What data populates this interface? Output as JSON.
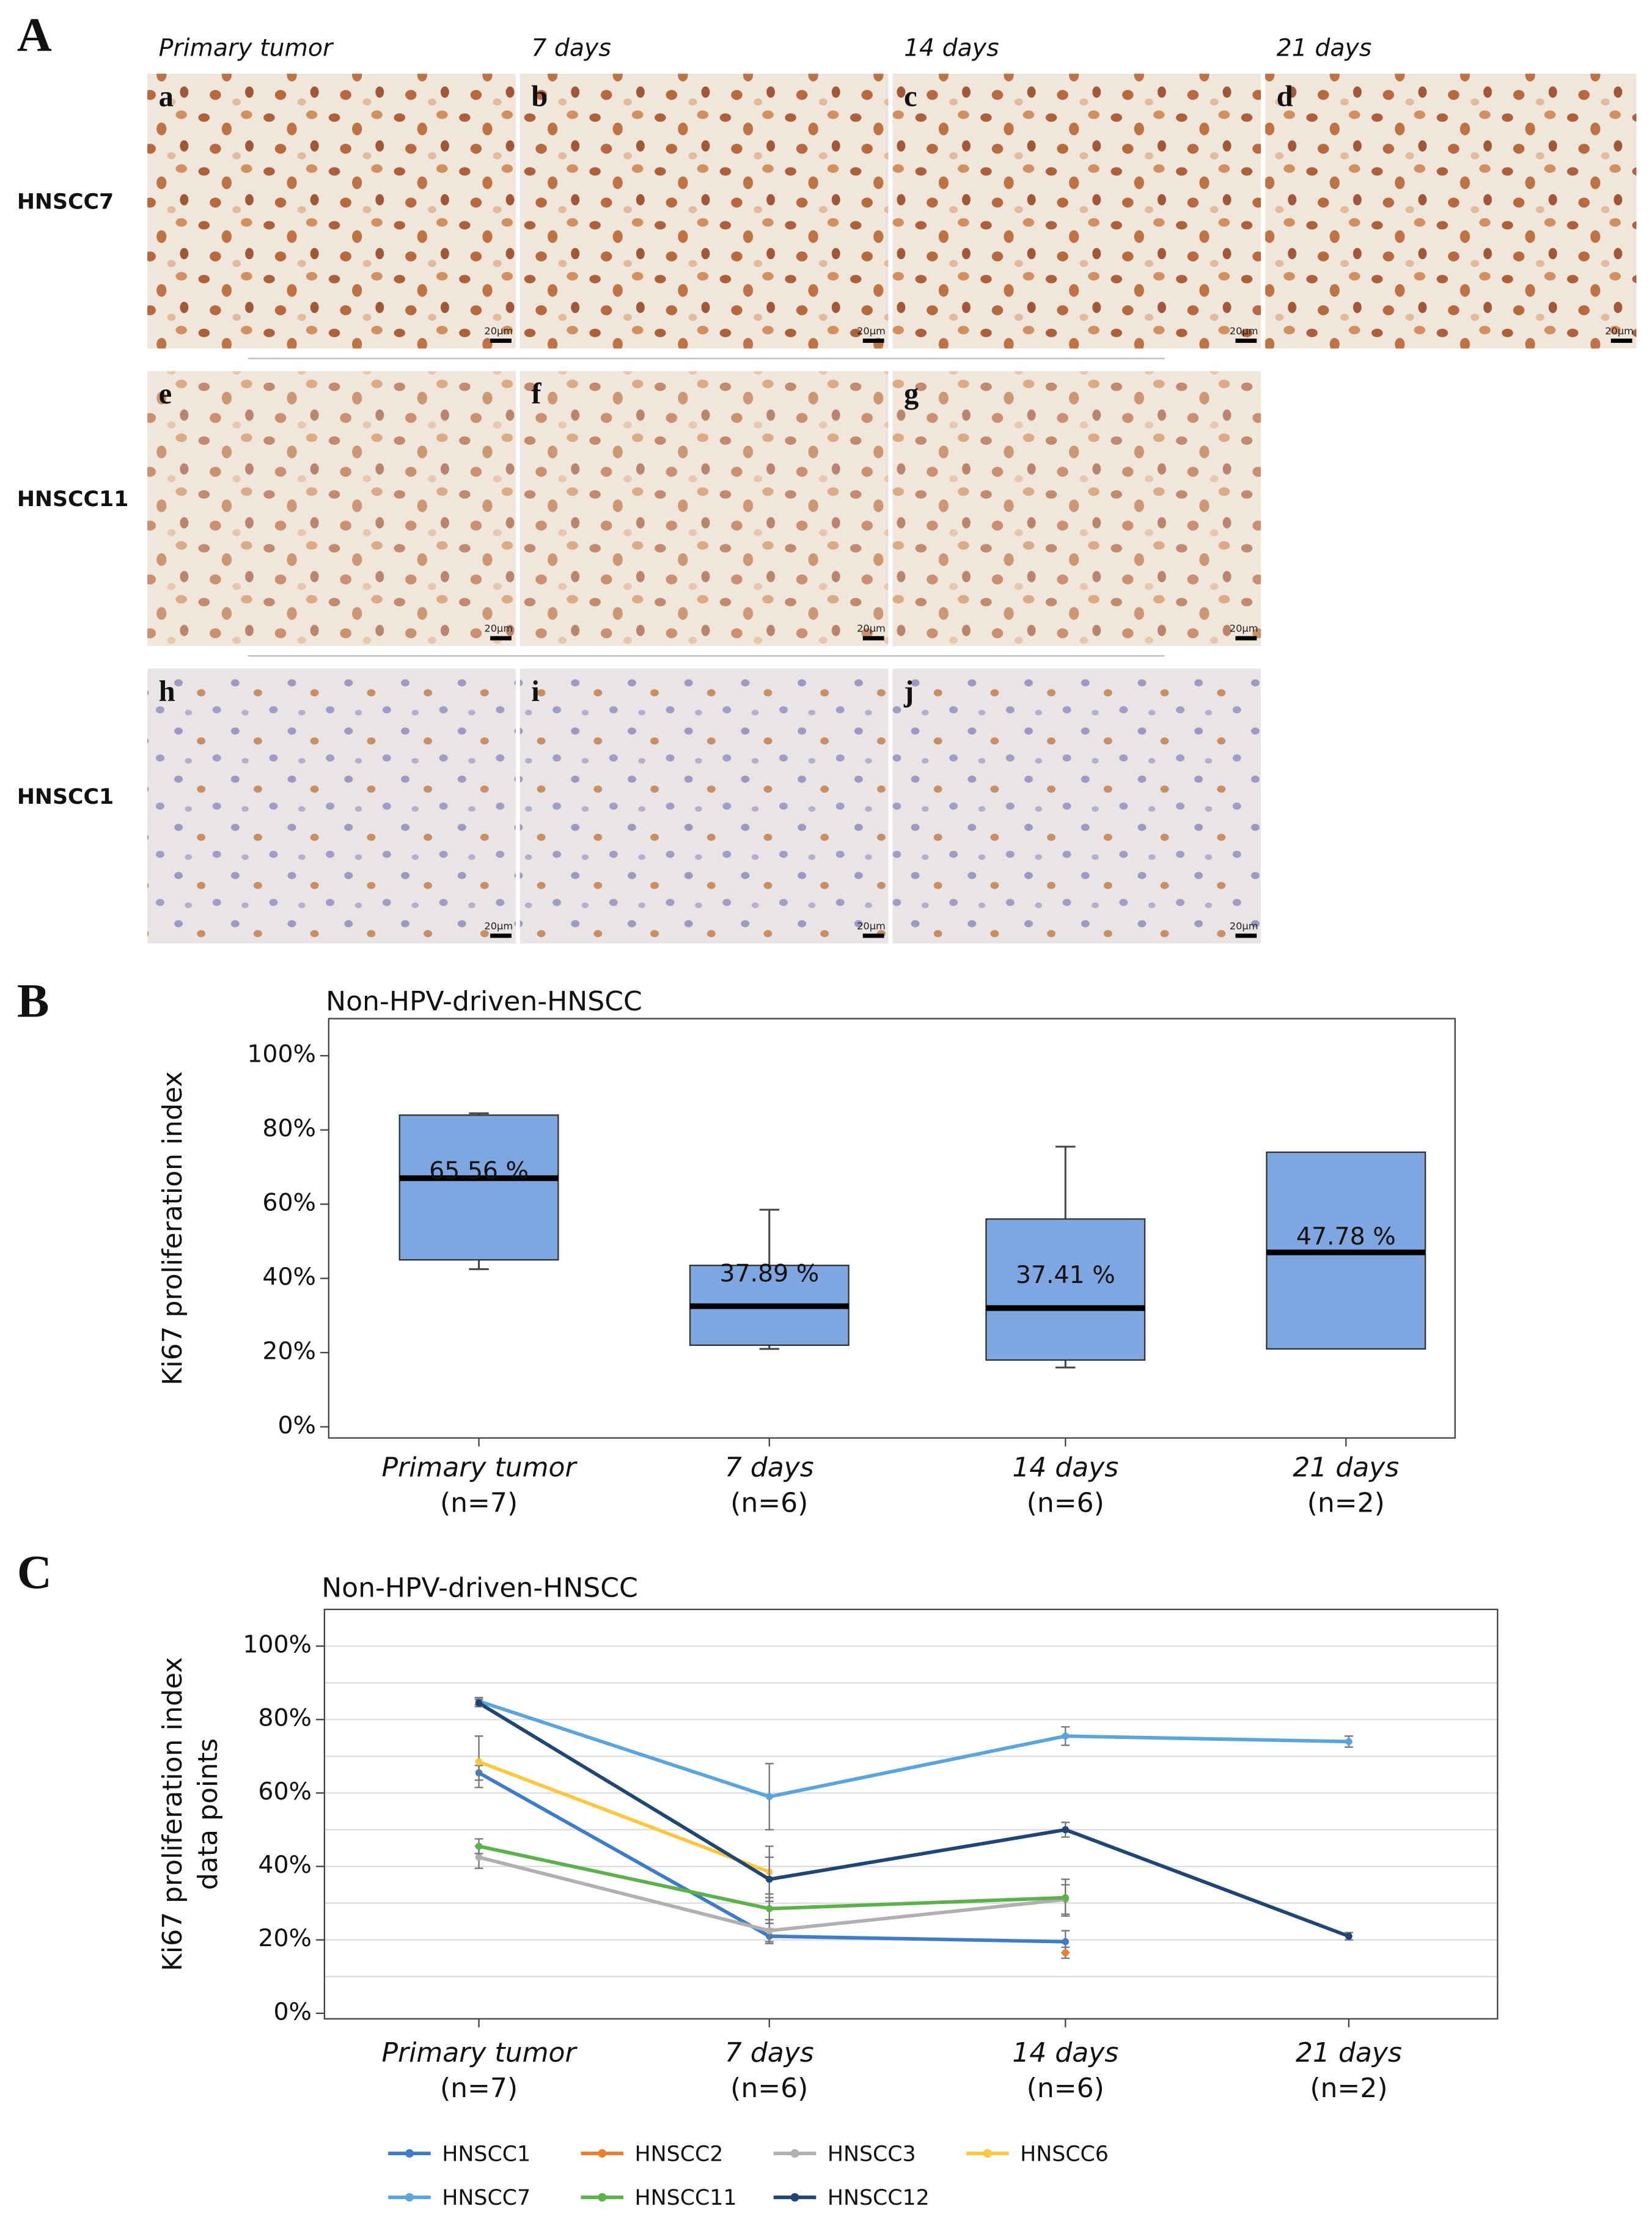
{
  "panel_a": {
    "label": "A",
    "columns": [
      "Primary tumor",
      "7 days",
      "14 days",
      "21 days"
    ],
    "rows": [
      {
        "label": "HNSCC7",
        "panels": [
          {
            "letter": "a",
            "scale_bar": "20µm"
          },
          {
            "letter": "b",
            "scale_bar": "20µm"
          },
          {
            "letter": "c",
            "scale_bar": "20µm"
          },
          {
            "letter": "d",
            "scale_bar": "20µm"
          }
        ]
      },
      {
        "label": "HNSCC11",
        "panels": [
          {
            "letter": "e",
            "scale_bar": "20µm"
          },
          {
            "letter": "f",
            "scale_bar": "20µm"
          },
          {
            "letter": "g",
            "scale_bar": "20µm"
          }
        ]
      },
      {
        "label": "HNSCC1",
        "panels": [
          {
            "letter": "h",
            "scale_bar": "20µm"
          },
          {
            "letter": "i",
            "scale_bar": "20µm"
          },
          {
            "letter": "j",
            "scale_bar": "20µm"
          }
        ]
      }
    ]
  },
  "chart_data": [
    {
      "type": "box",
      "panel_label": "B",
      "title": "Non-HPV-driven-HNSCC",
      "y_label": [
        "Ki67 proliferation index"
      ],
      "categories": [
        "Primary tumor",
        "7 days",
        "14 days",
        "21 days"
      ],
      "category_notes": [
        "(n=7)",
        "(n=6)",
        "(n=6)",
        "(n=2)"
      ],
      "whisker_low": [
        42.5,
        21,
        16,
        null
      ],
      "q1": [
        45,
        22,
        18,
        21
      ],
      "median": [
        67,
        32.5,
        32,
        47
      ],
      "q3": [
        84,
        43.5,
        56,
        74
      ],
      "whisker_high": [
        84.5,
        58.5,
        75.5,
        null
      ],
      "means": [
        65.56,
        37.89,
        37.41,
        47.78
      ],
      "mean_labels": [
        "65.56 %",
        "37.89 %",
        "37.41 %",
        "47.78 %"
      ],
      "color": "#7ea6e0",
      "ylim": [
        -3,
        110
      ],
      "yticks": [
        {
          "value": 0,
          "label": "0%"
        },
        {
          "value": 20,
          "label": "20%"
        },
        {
          "value": 40,
          "label": "40%"
        },
        {
          "value": 60,
          "label": "60%"
        },
        {
          "value": 80,
          "label": "80%"
        },
        {
          "value": 100,
          "label": "100%"
        }
      ]
    },
    {
      "type": "line",
      "panel_label": "C",
      "title": "Non-HPV-driven-HNSCC",
      "y_label": [
        "Ki67 proliferation index",
        "data points"
      ],
      "categories": [
        "Primary tumor",
        "7 days",
        "14 days",
        "21 days"
      ],
      "category_notes": [
        "(n=7)",
        "(n=6)",
        "(n=6)",
        "(n=2)"
      ],
      "series": [
        {
          "name": "HNSCC1",
          "color": "#3f7cc8",
          "values": [
            65.5,
            21,
            19.5,
            null
          ],
          "errors": [
            2,
            2,
            3,
            null
          ]
        },
        {
          "name": "HNSCC2",
          "color": "#ed7d31",
          "values": [
            null,
            null,
            16.5,
            null
          ],
          "errors": [
            null,
            null,
            1.5,
            null
          ]
        },
        {
          "name": "HNSCC3",
          "color": "#b0b0b0",
          "values": [
            42.5,
            22.5,
            31,
            null
          ],
          "errors": [
            3,
            3,
            4,
            null
          ]
        },
        {
          "name": "HNSCC6",
          "color": "#ffc640",
          "values": [
            68.5,
            38.5,
            null,
            null
          ],
          "errors": [
            7,
            7,
            null,
            null
          ]
        },
        {
          "name": "HNSCC7",
          "color": "#5aa5dc",
          "values": [
            85,
            59,
            75.5,
            74
          ],
          "errors": [
            1,
            9,
            2.5,
            1.5
          ]
        },
        {
          "name": "HNSCC11",
          "color": "#5bb14a",
          "values": [
            45.5,
            28.5,
            31.5,
            null
          ],
          "errors": [
            2,
            4,
            5,
            null
          ]
        },
        {
          "name": "HNSCC12",
          "color": "#1f4675",
          "values": [
            84.5,
            36.5,
            50,
            21
          ],
          "errors": [
            1,
            6,
            2,
            1
          ]
        }
      ],
      "ylim": [
        -1.5,
        110
      ],
      "yticks": [
        {
          "value": 0,
          "label": "0%"
        },
        {
          "value": 20,
          "label": "20%"
        },
        {
          "value": 40,
          "label": "40%"
        },
        {
          "value": 60,
          "label": "60%"
        },
        {
          "value": 80,
          "label": "80%"
        },
        {
          "value": 100,
          "label": "100%"
        }
      ],
      "ygrid": [
        10,
        20,
        30,
        40,
        50,
        60,
        70,
        80,
        90,
        100
      ]
    }
  ]
}
